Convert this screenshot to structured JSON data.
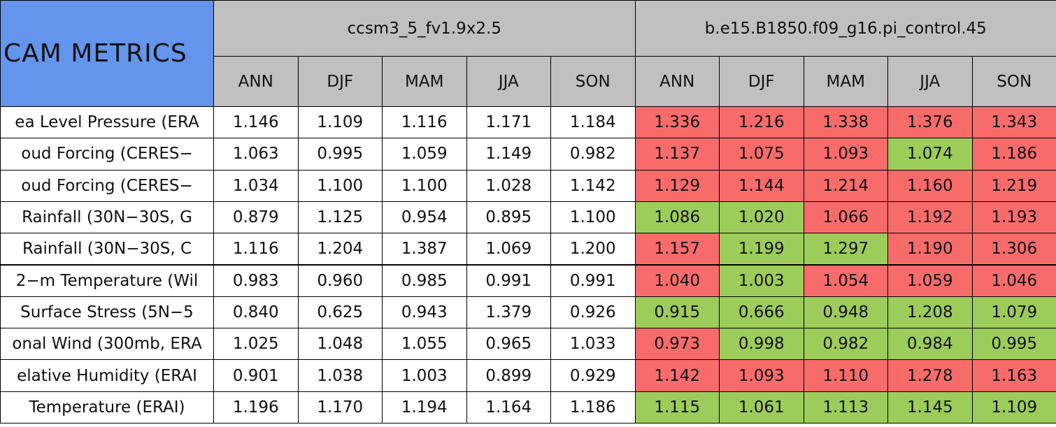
{
  "header": {
    "title": "CAM METRICS"
  },
  "groups": [
    {
      "name": "ccsm3_5_fv1.9x2.5",
      "seasons": [
        "ANN",
        "DJF",
        "MAM",
        "JJA",
        "SON"
      ]
    },
    {
      "name": "b.e15.B1850.f09_g16.pi_control.45",
      "seasons": [
        "ANN",
        "DJF",
        "MAM",
        "JJA",
        "SON"
      ]
    }
  ],
  "rows": [
    {
      "label": "ea Level Pressure (ERA",
      "values": [
        "1.146",
        "1.109",
        "1.116",
        "1.171",
        "1.184",
        "1.336",
        "1.216",
        "1.338",
        "1.376",
        "1.343"
      ],
      "colors": [
        "#ffffff",
        "#ffffff",
        "#ffffff",
        "#ffffff",
        "#ffffff",
        "#f86b6b",
        "#f86b6b",
        "#f86b6b",
        "#f86b6b",
        "#f86b6b"
      ]
    },
    {
      "label": "oud Forcing (CERES−",
      "values": [
        "1.063",
        "0.995",
        "1.059",
        "1.149",
        "0.982",
        "1.137",
        "1.075",
        "1.093",
        "1.074",
        "1.186"
      ],
      "colors": [
        "#ffffff",
        "#ffffff",
        "#ffffff",
        "#ffffff",
        "#ffffff",
        "#f86b6b",
        "#f86b6b",
        "#f86b6b",
        "#9ccc5a",
        "#f86b6b"
      ]
    },
    {
      "label": "oud Forcing (CERES−",
      "values": [
        "1.034",
        "1.100",
        "1.100",
        "1.028",
        "1.142",
        "1.129",
        "1.144",
        "1.214",
        "1.160",
        "1.219"
      ],
      "colors": [
        "#ffffff",
        "#ffffff",
        "#ffffff",
        "#ffffff",
        "#ffffff",
        "#f86b6b",
        "#f86b6b",
        "#f86b6b",
        "#f86b6b",
        "#f86b6b"
      ]
    },
    {
      "label": "Rainfall (30N−30S, G",
      "values": [
        "0.879",
        "1.125",
        "0.954",
        "0.895",
        "1.100",
        "1.086",
        "1.020",
        "1.066",
        "1.192",
        "1.193"
      ],
      "colors": [
        "#ffffff",
        "#ffffff",
        "#ffffff",
        "#ffffff",
        "#ffffff",
        "#9ccc5a",
        "#9ccc5a",
        "#f86b6b",
        "#f86b6b",
        "#f86b6b"
      ]
    },
    {
      "label": "Rainfall (30N−30S, C",
      "values": [
        "1.116",
        "1.204",
        "1.387",
        "1.069",
        "1.200",
        "1.157",
        "1.199",
        "1.297",
        "1.190",
        "1.306"
      ],
      "colors": [
        "#ffffff",
        "#ffffff",
        "#ffffff",
        "#ffffff",
        "#ffffff",
        "#f86b6b",
        "#9ccc5a",
        "#9ccc5a",
        "#f86b6b",
        "#f86b6b"
      ]
    },
    {
      "label": "2−m Temperature (Wil",
      "values": [
        "0.983",
        "0.960",
        "0.985",
        "0.991",
        "0.991",
        "1.040",
        "1.003",
        "1.054",
        "1.059",
        "1.046"
      ],
      "colors": [
        "#ffffff",
        "#ffffff",
        "#ffffff",
        "#ffffff",
        "#ffffff",
        "#f86b6b",
        "#9ccc5a",
        "#f86b6b",
        "#f86b6b",
        "#f86b6b"
      ]
    },
    {
      "label": "Surface Stress (5N−5",
      "values": [
        "0.840",
        "0.625",
        "0.943",
        "1.379",
        "0.926",
        "0.915",
        "0.666",
        "0.948",
        "1.208",
        "1.079"
      ],
      "colors": [
        "#ffffff",
        "#ffffff",
        "#ffffff",
        "#ffffff",
        "#ffffff",
        "#9ccc5a",
        "#9ccc5a",
        "#9ccc5a",
        "#9ccc5a",
        "#9ccc5a"
      ]
    },
    {
      "label": "onal Wind (300mb, ERA",
      "values": [
        "1.025",
        "1.048",
        "1.055",
        "0.965",
        "1.033",
        "0.973",
        "0.998",
        "0.982",
        "0.984",
        "0.995"
      ],
      "colors": [
        "#ffffff",
        "#ffffff",
        "#ffffff",
        "#ffffff",
        "#ffffff",
        "#f86b6b",
        "#9ccc5a",
        "#9ccc5a",
        "#9ccc5a",
        "#9ccc5a"
      ]
    },
    {
      "label": "elative Humidity (ERAI",
      "values": [
        "0.901",
        "1.038",
        "1.003",
        "0.899",
        "0.929",
        "1.142",
        "1.093",
        "1.110",
        "1.278",
        "1.163"
      ],
      "colors": [
        "#ffffff",
        "#ffffff",
        "#ffffff",
        "#ffffff",
        "#ffffff",
        "#f86b6b",
        "#f86b6b",
        "#f86b6b",
        "#f86b6b",
        "#f86b6b"
      ]
    },
    {
      "label": "Temperature (ERAI)",
      "values": [
        "1.196",
        "1.170",
        "1.194",
        "1.164",
        "1.186",
        "1.115",
        "1.061",
        "1.113",
        "1.145",
        "1.109"
      ],
      "colors": [
        "#ffffff",
        "#ffffff",
        "#ffffff",
        "#ffffff",
        "#ffffff",
        "#9ccc5a",
        "#9ccc5a",
        "#9ccc5a",
        "#9ccc5a",
        "#9ccc5a"
      ]
    }
  ]
}
